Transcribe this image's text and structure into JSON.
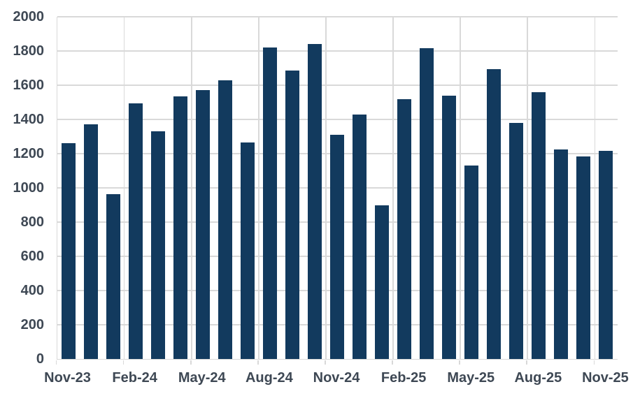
{
  "chart_data": {
    "type": "bar",
    "title": "",
    "xlabel": "",
    "ylabel": "",
    "categories": [
      "Nov-23",
      "Dec-23",
      "Jan-24",
      "Feb-24",
      "Mar-24",
      "Apr-24",
      "May-24",
      "Jun-24",
      "Jul-24",
      "Aug-24",
      "Sep-24",
      "Oct-24",
      "Nov-24",
      "Dec-24",
      "Jan-25",
      "Feb-25",
      "Mar-25",
      "Apr-25",
      "May-25",
      "Jun-25",
      "Jul-25",
      "Aug-25",
      "Sep-25",
      "Oct-25",
      "Nov-25"
    ],
    "values": [
      1260,
      1370,
      965,
      1495,
      1330,
      1535,
      1570,
      1630,
      1265,
      1820,
      1685,
      1840,
      1310,
      1430,
      900,
      1520,
      1815,
      1540,
      1130,
      1695,
      1380,
      1560,
      1225,
      1185,
      1215
    ],
    "x_tick_labels_shown": [
      "Nov-23",
      "Feb-24",
      "May-24",
      "Aug-24",
      "Nov-24",
      "Feb-25",
      "May-25",
      "Aug-25",
      "Nov-25"
    ],
    "y_tick_labels": [
      "0",
      "200",
      "400",
      "600",
      "800",
      "1000",
      "1200",
      "1400",
      "1600",
      "1800",
      "2000"
    ],
    "ylim": [
      0,
      2000
    ],
    "y_tick_step": 200,
    "grid": {
      "horizontal": "every 200 units",
      "vertical": "at each labeled x tick (every 3 months)"
    },
    "legend": "none",
    "colors": {
      "bar": "#123a5e",
      "gridline": "#d9d9d9",
      "axis_line": "#d9d9d9",
      "tick_label": "#3e4854",
      "background": "#ffffff"
    }
  }
}
